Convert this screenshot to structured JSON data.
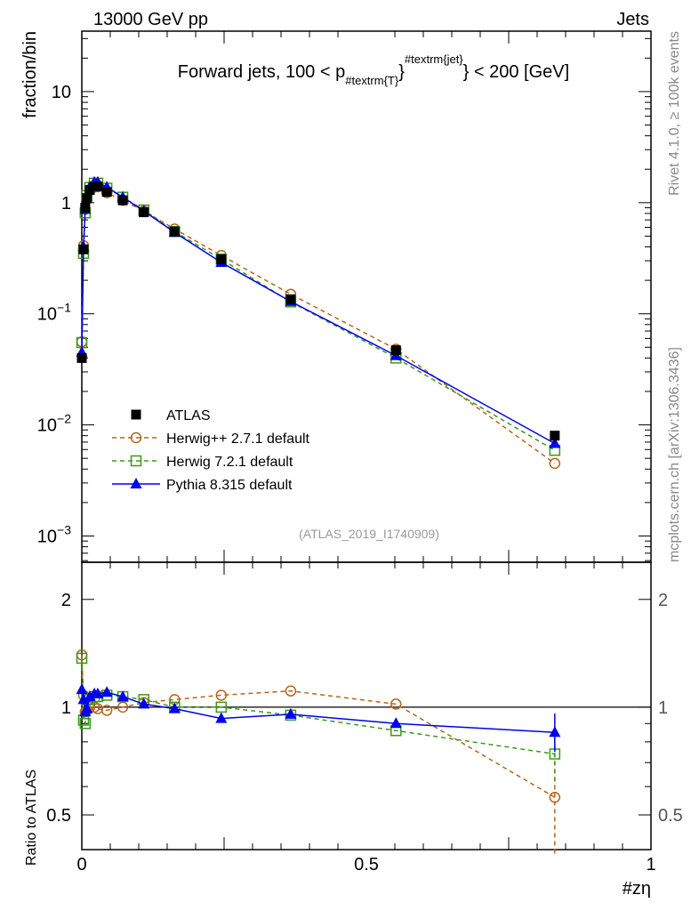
{
  "header": {
    "left": "13000 GeV pp",
    "right": "Jets"
  },
  "side_text": {
    "top": "Rivet 4.1.0, ≥ 100k events",
    "bottom": "mcplots.cern.ch [arXiv:1306.3436]"
  },
  "analysis_id": "(ATLAS_2019_I1740909)",
  "chart_data": [
    {
      "type": "line",
      "title_parts": {
        "pre": "Forward jets, 100 < p",
        "sub": "#textrm{T}",
        "mid": "}",
        "sup": "#textrm{jet}",
        "post": "} < 200 [GeV]"
      },
      "ylabel": "fraction/bin",
      "yscale": "log",
      "ylim": [
        0.00058,
        35
      ],
      "xlim": [
        0,
        1
      ],
      "ytick_labels": [
        {
          "v": 10,
          "b": "10",
          "e": ""
        },
        {
          "v": 1,
          "b": "1",
          "e": ""
        },
        {
          "v": 0.1,
          "b": "10",
          "e": "−1"
        },
        {
          "v": 0.01,
          "b": "10",
          "e": "−2"
        },
        {
          "v": 0.001,
          "b": "10",
          "e": "−3"
        }
      ],
      "legend_position": "lower-left",
      "x": [
        0.0,
        0.003,
        0.006,
        0.009,
        0.014,
        0.022,
        0.028,
        0.044,
        0.072,
        0.109,
        0.163,
        0.245,
        0.367,
        0.552,
        0.831
      ],
      "series": [
        {
          "name": "ATLAS",
          "color": "#000000",
          "marker": "square",
          "style": "none",
          "values": [
            0.04,
            0.38,
            0.9,
            1.1,
            1.3,
            1.4,
            1.4,
            1.25,
            1.05,
            0.82,
            0.55,
            0.31,
            0.135,
            0.047,
            0.008
          ]
        },
        {
          "name": "Herwig++ 2.7.1 default",
          "color": "#b5651d",
          "marker": "circle-open",
          "style": "dashed",
          "values": [
            0.056,
            0.41,
            0.87,
            1.08,
            1.3,
            1.4,
            1.39,
            1.23,
            1.05,
            0.84,
            0.58,
            0.335,
            0.15,
            0.048,
            0.0045
          ]
        },
        {
          "name": "Herwig 7.2.1 default",
          "color": "#3a9a1a",
          "marker": "square-open",
          "style": "dashed",
          "values": [
            0.055,
            0.35,
            0.81,
            1.16,
            1.37,
            1.5,
            1.5,
            1.35,
            1.12,
            0.86,
            0.55,
            0.31,
            0.128,
            0.04,
            0.0059
          ]
        },
        {
          "name": "Pythia 8.315 default",
          "color": "#0000ee",
          "marker": "triangle",
          "style": "solid",
          "values": [
            0.045,
            0.4,
            0.87,
            1.09,
            1.39,
            1.53,
            1.53,
            1.38,
            1.12,
            0.84,
            0.54,
            0.29,
            0.129,
            0.042,
            0.0068
          ]
        }
      ]
    },
    {
      "type": "line",
      "ylabel": "Ratio to ATLAS",
      "xlabel": "#zη",
      "yscale": "log",
      "ylim": [
        0.4,
        2.54
      ],
      "xlim": [
        0,
        1
      ],
      "ytick_labels": [
        {
          "v": 2,
          "t": "2"
        },
        {
          "v": 1,
          "t": "1"
        },
        {
          "v": 0.5,
          "t": "0.5"
        }
      ],
      "xtick_labels": [
        {
          "v": 0,
          "t": "0"
        },
        {
          "v": 0.5,
          "t": "0.5"
        },
        {
          "v": 1,
          "t": "1"
        }
      ],
      "series": [
        {
          "name": "Herwig++ 2.7.1 default",
          "values": [
            1.4,
            1.08,
            0.97,
            0.98,
            1.0,
            1.0,
            0.99,
            0.98,
            1.0,
            1.03,
            1.05,
            1.08,
            1.11,
            1.02,
            0.56
          ],
          "last_err": [
            0.39,
            0.78
          ]
        },
        {
          "name": "Herwig 7.2.1 default",
          "values": [
            1.37,
            0.92,
            0.9,
            1.05,
            1.05,
            1.07,
            1.07,
            1.08,
            1.07,
            1.05,
            1.0,
            1.0,
            0.95,
            0.86,
            0.74
          ],
          "last_err": [
            0.62,
            0.82
          ]
        },
        {
          "name": "Pythia 8.315 default",
          "values": [
            1.12,
            1.05,
            0.97,
            0.99,
            1.07,
            1.09,
            1.09,
            1.1,
            1.07,
            1.02,
            0.99,
            0.93,
            0.955,
            0.9,
            0.85
          ],
          "last_err": [
            0.75,
            0.96
          ]
        }
      ]
    }
  ]
}
